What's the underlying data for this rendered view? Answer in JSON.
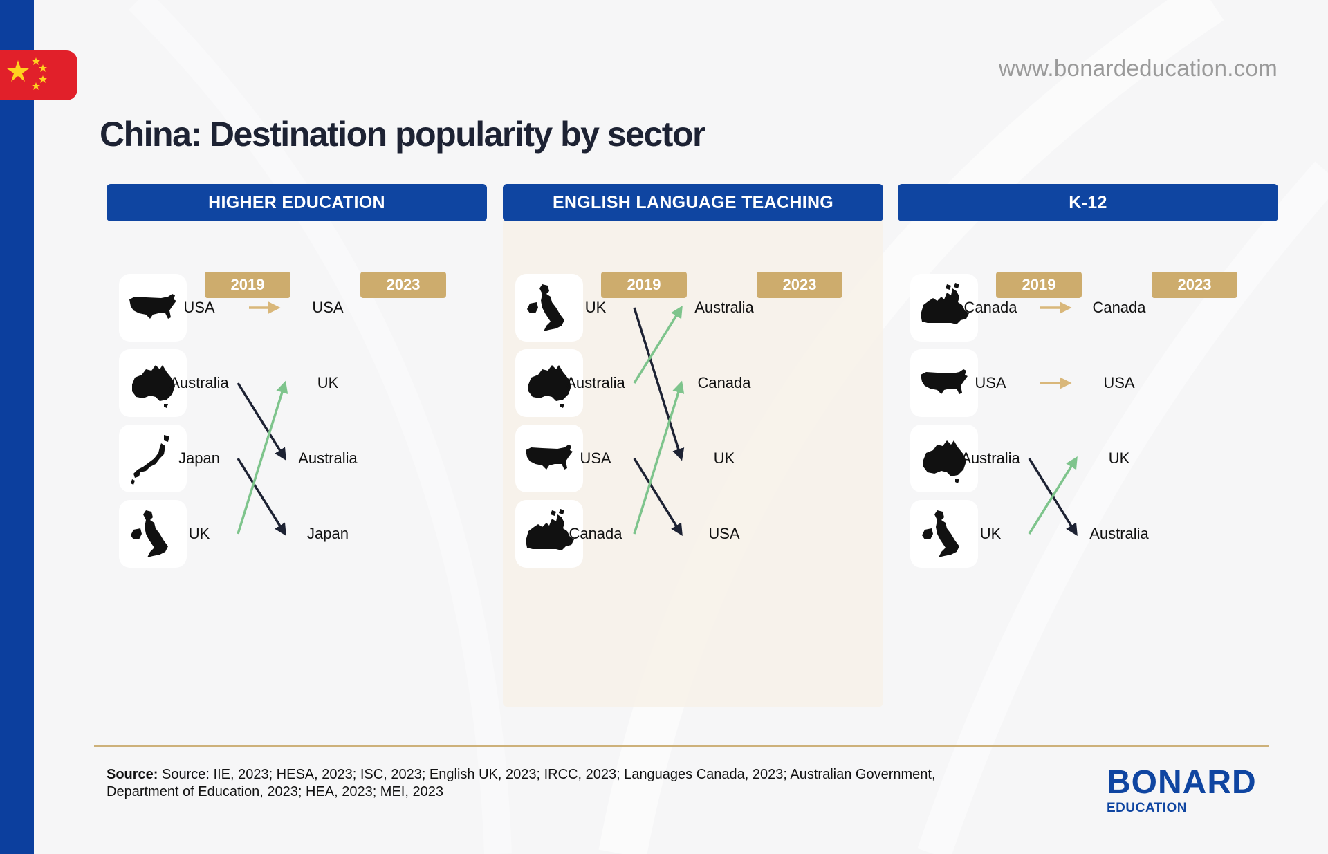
{
  "url": "www.bonardeducation.com",
  "title": "China: Destination popularity by sector",
  "colors": {
    "brand_blue": "#0f45a1",
    "gold": "#cdac6d",
    "flag_red": "#e1202a",
    "arrow_same": "#d9b77a",
    "arrow_up": "#7ec48c",
    "arrow_down": "#1d2233"
  },
  "panels": [
    {
      "header": "HIGHER EDUCATION",
      "year_from": "2019",
      "year_to": "2023",
      "rank_2019": [
        "USA",
        "Australia",
        "Japan",
        "UK"
      ],
      "rank_2023": [
        "USA",
        "UK",
        "Australia",
        "Japan"
      ],
      "icons": [
        "usa-map-icon",
        "australia-map-icon",
        "japan-map-icon",
        "uk-map-icon"
      ]
    },
    {
      "header": "ENGLISH LANGUAGE TEACHING",
      "year_from": "2019",
      "year_to": "2023",
      "rank_2019": [
        "UK",
        "Australia",
        "USA",
        "Canada"
      ],
      "rank_2023": [
        "Australia",
        "Canada",
        "UK",
        "USA"
      ],
      "icons": [
        "uk-map-icon",
        "australia-map-icon",
        "usa-map-icon",
        "canada-map-icon"
      ]
    },
    {
      "header": "K-12",
      "year_from": "2019",
      "year_to": "2023",
      "rank_2019": [
        "Canada",
        "USA",
        "Australia",
        "UK"
      ],
      "rank_2023": [
        "Canada",
        "USA",
        "UK",
        "Australia"
      ],
      "icons": [
        "canada-map-icon",
        "usa-map-icon",
        "australia-map-icon",
        "uk-map-icon"
      ]
    }
  ],
  "source": {
    "label": "Source:",
    "text": "Source: IIE, 2023; HESA, 2023; ISC, 2023; English UK, 2023; IRCC, 2023; Languages Canada, 2023; Australian Government, Department of Education, 2023; HEA, 2023; MEI, 2023"
  },
  "logo": {
    "brand": "BONARD",
    "sub": "EDUCATION"
  }
}
